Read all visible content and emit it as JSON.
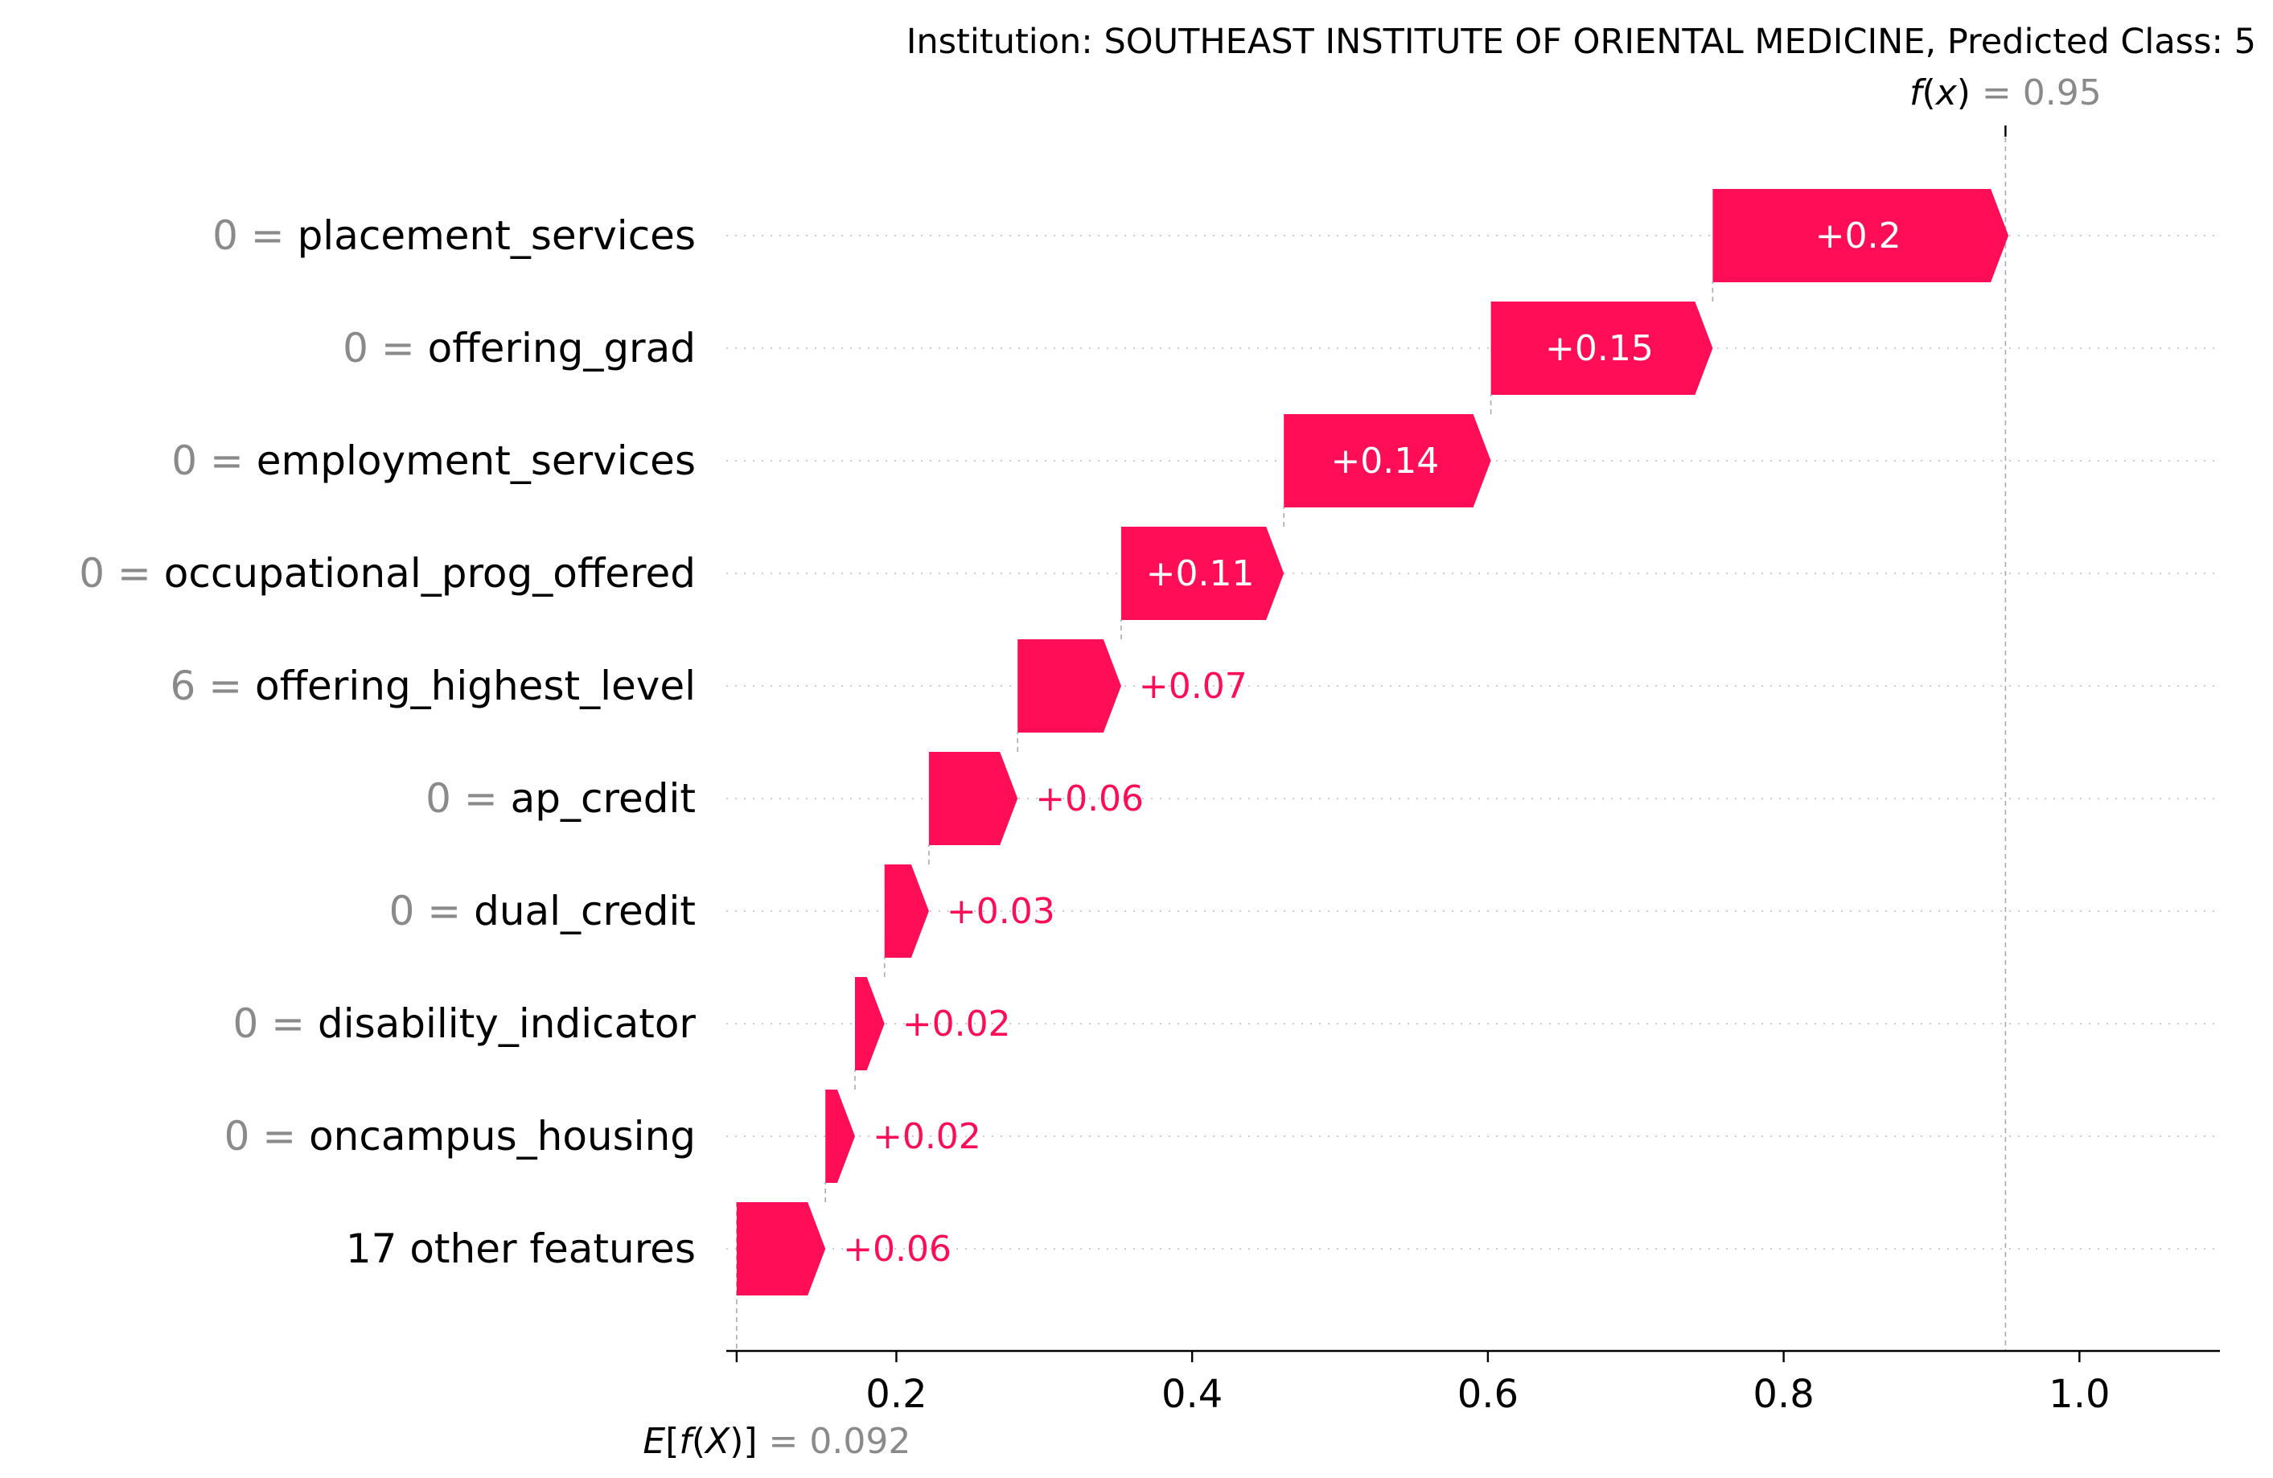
{
  "chart_data": {
    "type": "waterfall",
    "title": "Institution: SOUTHEAST INSTITUTE OF ORIENTAL MEDICINE, Predicted Class: 5",
    "base_value": 0.092,
    "base_label": "= 0.092",
    "output_value": 0.95,
    "output_label": "= 0.95",
    "xlim": [
      0.085,
      1.095
    ],
    "xticks": [
      0.2,
      0.4,
      0.6,
      0.8,
      1.0
    ],
    "xtick_labels": [
      "0.2",
      "0.4",
      "0.6",
      "0.8",
      "1.0"
    ],
    "features": [
      {
        "value": "0",
        "name": "placement_services",
        "contribution": 0.2,
        "label": "+0.2"
      },
      {
        "value": "0",
        "name": "offering_grad",
        "contribution": 0.15,
        "label": "+0.15"
      },
      {
        "value": "0",
        "name": "employment_services",
        "contribution": 0.14,
        "label": "+0.14"
      },
      {
        "value": "0",
        "name": "occupational_prog_offered",
        "contribution": 0.11,
        "label": "+0.11"
      },
      {
        "value": "6",
        "name": "offering_highest_level",
        "contribution": 0.07,
        "label": "+0.07"
      },
      {
        "value": "0",
        "name": "ap_credit",
        "contribution": 0.06,
        "label": "+0.06"
      },
      {
        "value": "0",
        "name": "dual_credit",
        "contribution": 0.03,
        "label": "+0.03"
      },
      {
        "value": "0",
        "name": "disability_indicator",
        "contribution": 0.02,
        "label": "+0.02"
      },
      {
        "value": "0",
        "name": "oncampus_housing",
        "contribution": 0.02,
        "label": "+0.02"
      },
      {
        "value": "",
        "name": "17 other features",
        "contribution": 0.06,
        "label": "+0.06"
      }
    ],
    "colors": {
      "positive": "#ff0d57",
      "grid": "#cccccc",
      "value_text": "#8a8a8a",
      "text": "#000000"
    }
  }
}
